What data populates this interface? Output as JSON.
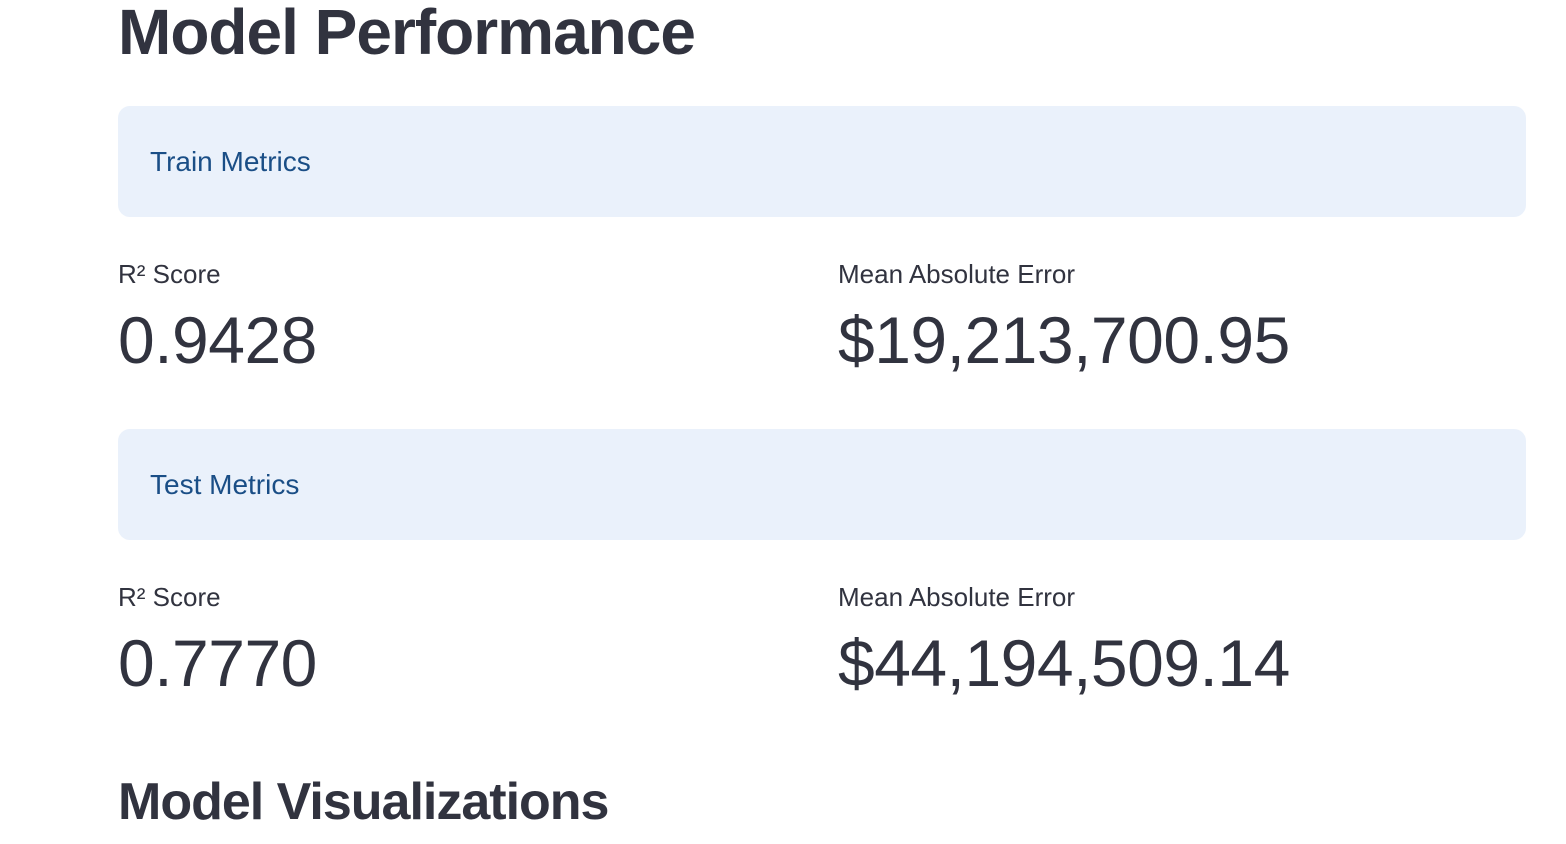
{
  "page": {
    "title": "Model Performance",
    "visualizations_heading": "Model Visualizations"
  },
  "train": {
    "header": "Train Metrics",
    "r2_label": "R² Score",
    "r2_value": "0.9428",
    "mae_label": "Mean Absolute Error",
    "mae_value": "$19,213,700.95"
  },
  "test": {
    "header": "Test Metrics",
    "r2_label": "R² Score",
    "r2_value": "0.7770",
    "mae_label": "Mean Absolute Error",
    "mae_value": "$44,194,509.14"
  },
  "colors": {
    "info_background": "#eaf1fb",
    "info_text": "#1a4e86",
    "text": "#31333f"
  }
}
